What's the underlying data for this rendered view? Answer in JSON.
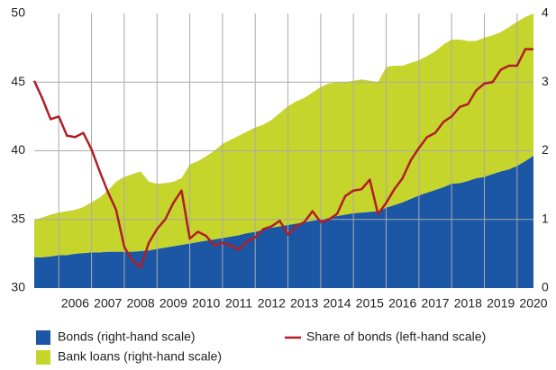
{
  "chart_data": {
    "type": "area",
    "x": [
      2005.25,
      2005.5,
      2005.75,
      2006,
      2006.25,
      2006.5,
      2006.75,
      2007,
      2007.25,
      2007.5,
      2007.75,
      2008,
      2008.25,
      2008.5,
      2008.75,
      2009,
      2009.25,
      2009.5,
      2009.75,
      2010,
      2010.25,
      2010.5,
      2010.75,
      2011,
      2011.25,
      2011.5,
      2011.75,
      2012,
      2012.25,
      2012.5,
      2012.75,
      2013,
      2013.25,
      2013.5,
      2013.75,
      2014,
      2014.25,
      2014.5,
      2014.75,
      2015,
      2015.25,
      2015.5,
      2015.75,
      2016,
      2016.25,
      2016.5,
      2016.75,
      2017,
      2017.25,
      2017.5,
      2017.75,
      2018,
      2018.25,
      2018.5,
      2018.75,
      2019,
      2019.25,
      2019.5,
      2019.75,
      2020,
      2020.25,
      2020.5
    ],
    "series": [
      {
        "name": "Bonds (right-hand scale)",
        "type": "area",
        "axis": "y2",
        "color": "#1c57a5",
        "values": [
          0.45,
          0.45,
          0.46,
          0.48,
          0.48,
          0.5,
          0.51,
          0.52,
          0.52,
          0.53,
          0.53,
          0.53,
          0.53,
          0.54,
          0.55,
          0.57,
          0.59,
          0.61,
          0.63,
          0.65,
          0.67,
          0.69,
          0.71,
          0.73,
          0.75,
          0.77,
          0.8,
          0.82,
          0.85,
          0.88,
          0.9,
          0.92,
          0.94,
          0.96,
          0.98,
          1.0,
          1.02,
          1.05,
          1.07,
          1.09,
          1.1,
          1.11,
          1.12,
          1.17,
          1.21,
          1.25,
          1.3,
          1.35,
          1.39,
          1.43,
          1.47,
          1.52,
          1.53,
          1.56,
          1.6,
          1.62,
          1.66,
          1.7,
          1.73,
          1.78,
          1.85,
          1.93
        ]
      },
      {
        "name": "Bank loans (right-hand scale)",
        "type": "area",
        "axis": "y2",
        "color": "#c5d52c",
        "values": [
          0.54,
          0.58,
          0.61,
          0.62,
          0.64,
          0.64,
          0.67,
          0.73,
          0.8,
          0.89,
          1.02,
          1.09,
          1.13,
          1.16,
          1.0,
          0.95,
          0.94,
          0.94,
          0.97,
          1.15,
          1.18,
          1.23,
          1.29,
          1.37,
          1.41,
          1.45,
          1.48,
          1.52,
          1.53,
          1.57,
          1.65,
          1.73,
          1.78,
          1.81,
          1.87,
          1.93,
          1.96,
          1.95,
          1.93,
          1.93,
          1.94,
          1.91,
          1.88,
          2.05,
          2.03,
          1.99,
          1.98,
          1.97,
          1.99,
          2.02,
          2.08,
          2.1,
          2.09,
          2.04,
          2.0,
          2.03,
          2.02,
          2.03,
          2.07,
          2.1,
          2.1,
          2.07
        ]
      },
      {
        "name": "Share of bonds (left-hand scale)",
        "type": "line",
        "color": "#b01e24",
        "values": [
          45.1,
          43.8,
          42.3,
          42.5,
          41.1,
          41.0,
          41.3,
          40.1,
          38.5,
          37.0,
          35.7,
          33.0,
          32.0,
          31.5,
          33.3,
          34.3,
          35.0,
          36.2,
          37.1,
          33.6,
          34.1,
          33.8,
          33.1,
          33.3,
          33.1,
          32.8,
          33.4,
          33.7,
          34.3,
          34.5,
          34.9,
          33.9,
          34.5,
          34.8,
          35.6,
          34.8,
          35.0,
          35.4,
          36.7,
          37.1,
          37.2,
          37.9,
          35.4,
          36.2,
          37.2,
          38.0,
          39.3,
          40.2,
          41.0,
          41.3,
          42.1,
          42.5,
          43.2,
          43.4,
          44.4,
          44.9,
          45.0,
          45.9,
          46.2,
          46.2,
          47.4,
          47.4
        ]
      }
    ],
    "xlim": [
      2005.25,
      2020.5
    ],
    "xticks": [
      2006,
      2007,
      2008,
      2009,
      2010,
      2011,
      2012,
      2013,
      2014,
      2015,
      2016,
      2017,
      2018,
      2019,
      2020
    ],
    "ylim": [
      30,
      50
    ],
    "yticks": [
      30,
      35,
      40,
      45,
      50
    ],
    "y2lim": [
      0,
      4
    ],
    "y2ticks": [
      0,
      1,
      2,
      3,
      4
    ],
    "grid": true
  }
}
